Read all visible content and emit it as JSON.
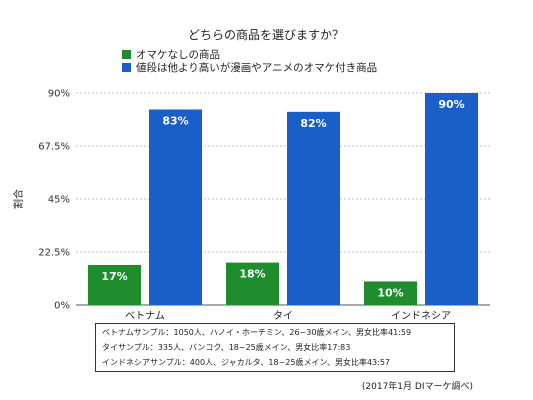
{
  "chart_data": {
    "type": "bar",
    "title": "どちらの商品を選びますか？",
    "xlabel": "",
    "ylabel": "割合",
    "categories": [
      "ベトナム",
      "タイ",
      "インドネシア"
    ],
    "series": [
      {
        "name": "オマケなしの商品",
        "values": [
          17,
          18,
          10
        ],
        "labels": [
          "17%",
          "18%",
          "10%"
        ],
        "color": "#1f8c2e"
      },
      {
        "name": "値段は他より高いが漫画やアニメのオマケ付き商品",
        "values": [
          83,
          82,
          90
        ],
        "labels": [
          "83%",
          "82%",
          "90%"
        ],
        "color": "#1a5fc7"
      }
    ],
    "ylim": [
      0,
      90
    ],
    "yticks": [
      0,
      22.5,
      45,
      67.5,
      90
    ],
    "ytick_labels": [
      "0%",
      "22.5%",
      "45%",
      "67.5%",
      "90%"
    ],
    "grid": true,
    "legend": "top-left"
  },
  "notes": [
    "ベトナムサンプル：1050人、ハノイ・ホーチミン、26~30歳メイン、男女比率41:59",
    "タイサンプル：335人、バンコク、18~25歳メイン、男女比率17:83",
    "インドネシアサンプル：400人、ジャカルタ、18~25歳メイン、男女比率43:57"
  ],
  "source": "(2017年1月 DIマーケ調べ)"
}
